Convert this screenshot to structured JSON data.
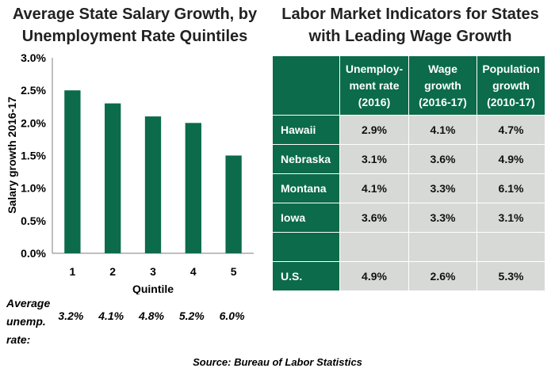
{
  "left_panel": {
    "title": "Average State Salary Growth, by Unemployment Rate Quintiles",
    "avg_label": "Average unemp. rate:",
    "avg_unemp": [
      "3.2%",
      "4.1%",
      "4.8%",
      "5.2%",
      "6.0%"
    ]
  },
  "right_panel": {
    "title": "Labor Market Indicators for States with Leading Wage Growth",
    "headers": [
      "",
      "Unemploy-ment rate (2016)",
      "Wage growth (2016-17)",
      "Population growth (2010-17)"
    ],
    "rows": [
      {
        "state": "Hawaii",
        "unemp": "2.9%",
        "wage": "4.1%",
        "pop": "4.7%"
      },
      {
        "state": "Nebraska",
        "unemp": "3.1%",
        "wage": "3.6%",
        "pop": "4.9%"
      },
      {
        "state": "Montana",
        "unemp": "4.1%",
        "wage": "3.3%",
        "pop": "6.1%"
      },
      {
        "state": "Iowa",
        "unemp": "3.6%",
        "wage": "3.3%",
        "pop": "3.1%"
      },
      {
        "state": "",
        "unemp": "",
        "wage": "",
        "pop": ""
      },
      {
        "state": "U.S.",
        "unemp": "4.9%",
        "wage": "2.6%",
        "pop": "5.3%"
      }
    ]
  },
  "source": "Source: Bureau of Labor Statistics",
  "colors": {
    "bar": "#0b6b4a",
    "header_bg": "#0b6b4a",
    "cell_bg": "#d7d9d7"
  },
  "chart_data": {
    "type": "bar",
    "title": "Average State Salary Growth, by Unemployment Rate Quintiles",
    "xlabel": "Quintile",
    "ylabel": "Salary growth 2016-17",
    "categories": [
      "1",
      "2",
      "3",
      "4",
      "5"
    ],
    "values": [
      2.5,
      2.3,
      2.1,
      2.0,
      1.5
    ],
    "ylim": [
      0,
      3.0
    ],
    "yticks": [
      "0.0%",
      "0.5%",
      "1.0%",
      "1.5%",
      "2.0%",
      "2.5%",
      "3.0%"
    ],
    "grid": false,
    "legend": "none"
  }
}
